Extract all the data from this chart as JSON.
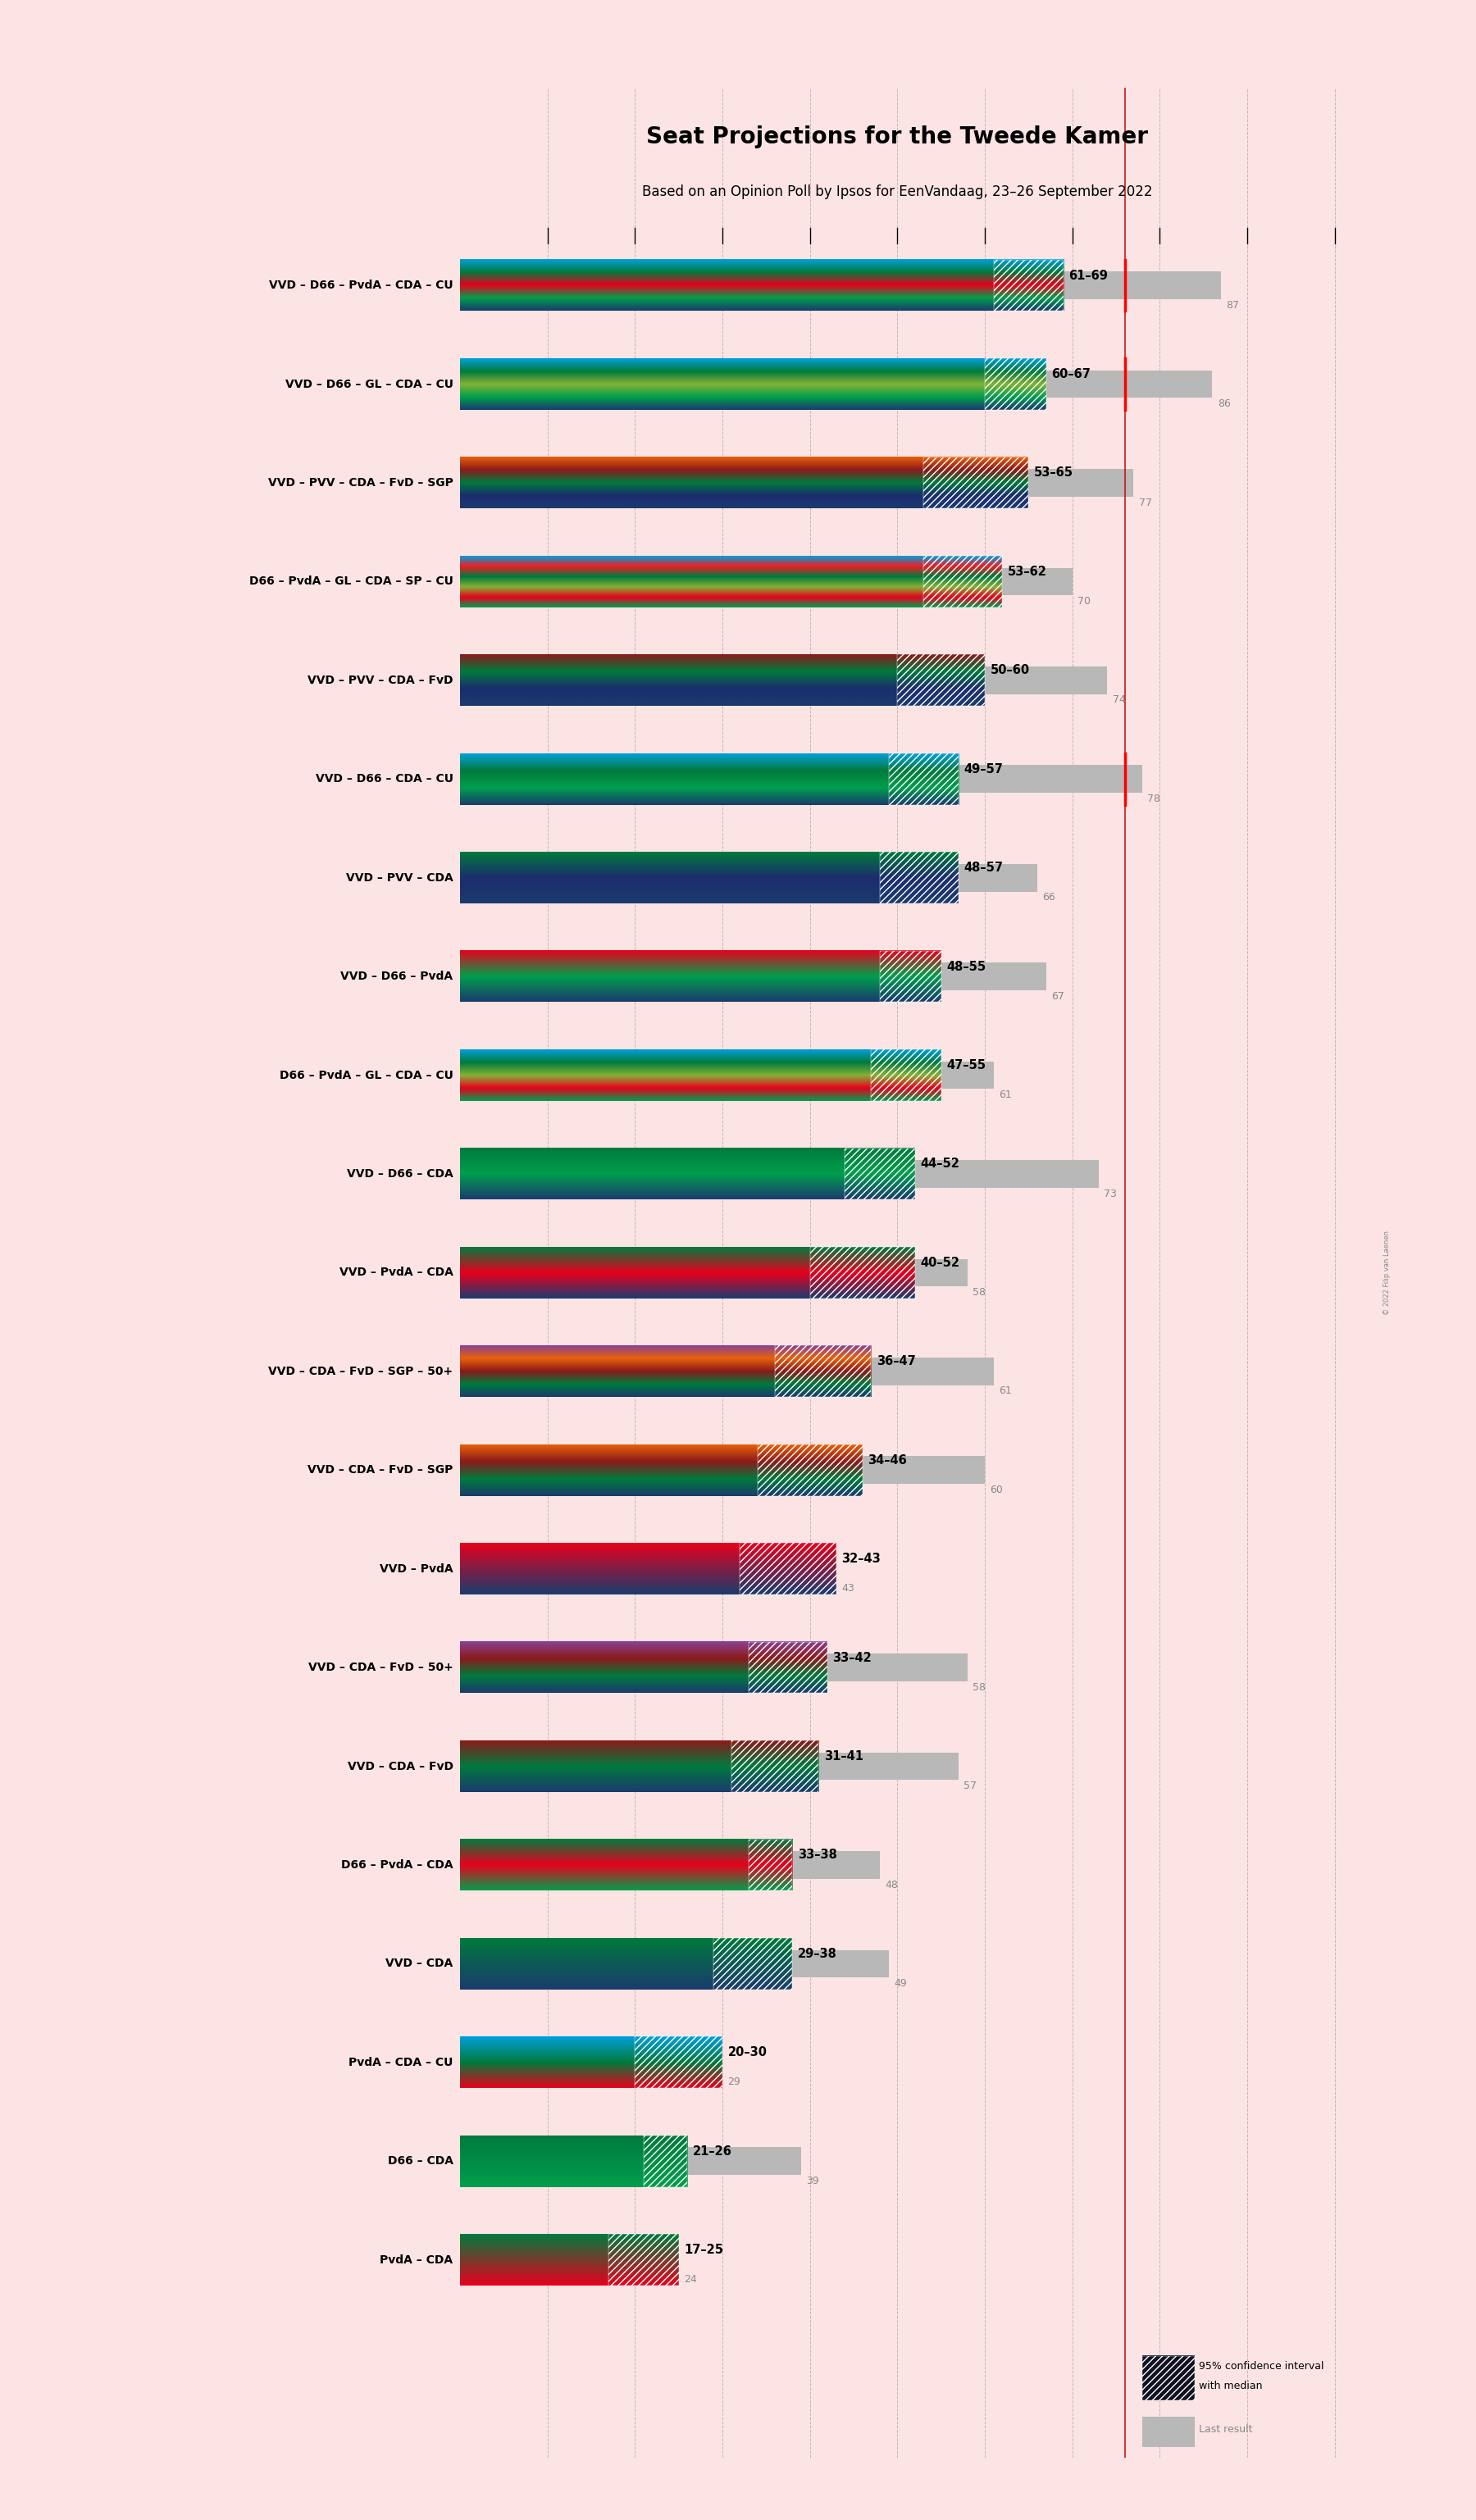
{
  "title": "Seat Projections for the Tweede Kamer",
  "subtitle": "Based on an Opinion Poll by Ipsos for EenVandaag, 23–26 September 2022",
  "background_color": "#fce4e4",
  "bar_bg_color": "#c0c0c0",
  "coalitions": [
    {
      "name": "VVD – D66 – PvdA – CDA – CU",
      "low": 61,
      "high": 69,
      "last": 87,
      "parties": [
        "VVD",
        "D66",
        "PvdA",
        "CDA",
        "CU"
      ],
      "majority_marker": true
    },
    {
      "name": "VVD – D66 – GL – CDA – CU",
      "low": 60,
      "high": 67,
      "last": 86,
      "parties": [
        "VVD",
        "D66",
        "GL",
        "CDA",
        "CU"
      ],
      "majority_marker": true
    },
    {
      "name": "VVD – PVV – CDA – FvD – SGP",
      "low": 53,
      "high": 65,
      "last": 77,
      "parties": [
        "VVD",
        "PVV",
        "CDA",
        "FvD",
        "SGP"
      ],
      "majority_marker": false
    },
    {
      "name": "D66 – PvdA – GL – CDA – SP – CU",
      "low": 53,
      "high": 62,
      "last": 70,
      "parties": [
        "D66",
        "PvdA",
        "GL",
        "CDA",
        "SP",
        "CU"
      ],
      "majority_marker": false
    },
    {
      "name": "VVD – PVV – CDA – FvD",
      "low": 50,
      "high": 60,
      "last": 74,
      "parties": [
        "VVD",
        "PVV",
        "CDA",
        "FvD"
      ],
      "majority_marker": false
    },
    {
      "name": "VVD – D66 – CDA – CU",
      "low": 49,
      "high": 57,
      "last": 78,
      "parties": [
        "VVD",
        "D66",
        "CDA",
        "CU"
      ],
      "majority_marker": true
    },
    {
      "name": "VVD – PVV – CDA",
      "low": 48,
      "high": 57,
      "last": 66,
      "parties": [
        "VVD",
        "PVV",
        "CDA"
      ],
      "majority_marker": false
    },
    {
      "name": "VVD – D66 – PvdA",
      "low": 48,
      "high": 55,
      "last": 67,
      "parties": [
        "VVD",
        "D66",
        "PvdA"
      ],
      "majority_marker": false
    },
    {
      "name": "D66 – PvdA – GL – CDA – CU",
      "low": 47,
      "high": 55,
      "last": 61,
      "parties": [
        "D66",
        "PvdA",
        "GL",
        "CDA",
        "CU"
      ],
      "majority_marker": false
    },
    {
      "name": "VVD – D66 – CDA",
      "low": 44,
      "high": 52,
      "last": 73,
      "parties": [
        "VVD",
        "D66",
        "CDA"
      ],
      "majority_marker": false
    },
    {
      "name": "VVD – PvdA – CDA",
      "low": 40,
      "high": 52,
      "last": 58,
      "parties": [
        "VVD",
        "PvdA",
        "CDA"
      ],
      "majority_marker": false
    },
    {
      "name": "VVD – CDA – FvD – SGP – 50+",
      "low": 36,
      "high": 47,
      "last": 61,
      "parties": [
        "VVD",
        "CDA",
        "FvD",
        "SGP",
        "50+"
      ],
      "majority_marker": false
    },
    {
      "name": "VVD – CDA – FvD – SGP",
      "low": 34,
      "high": 46,
      "last": 60,
      "parties": [
        "VVD",
        "CDA",
        "FvD",
        "SGP"
      ],
      "majority_marker": false
    },
    {
      "name": "VVD – PvdA",
      "low": 32,
      "high": 43,
      "last": 43,
      "parties": [
        "VVD",
        "PvdA"
      ],
      "majority_marker": false
    },
    {
      "name": "VVD – CDA – FvD – 50+",
      "low": 33,
      "high": 42,
      "last": 58,
      "parties": [
        "VVD",
        "CDA",
        "FvD",
        "50+"
      ],
      "majority_marker": false
    },
    {
      "name": "VVD – CDA – FvD",
      "low": 31,
      "high": 41,
      "last": 57,
      "parties": [
        "VVD",
        "CDA",
        "FvD"
      ],
      "majority_marker": false
    },
    {
      "name": "D66 – PvdA – CDA",
      "low": 33,
      "high": 38,
      "last": 48,
      "parties": [
        "D66",
        "PvdA",
        "CDA"
      ],
      "majority_marker": false
    },
    {
      "name": "VVD – CDA",
      "low": 29,
      "high": 38,
      "last": 49,
      "parties": [
        "VVD",
        "CDA"
      ],
      "majority_marker": false
    },
    {
      "name": "PvdA – CDA – CU",
      "low": 20,
      "high": 30,
      "last": 29,
      "parties": [
        "PvdA",
        "CDA",
        "CU"
      ],
      "majority_marker": false
    },
    {
      "name": "D66 – CDA",
      "low": 21,
      "high": 26,
      "last": 39,
      "parties": [
        "D66",
        "CDA"
      ],
      "majority_marker": false
    },
    {
      "name": "PvdA – CDA",
      "low": 17,
      "high": 25,
      "last": 24,
      "parties": [
        "PvdA",
        "CDA"
      ],
      "majority_marker": false
    }
  ],
  "party_colors": {
    "VVD": "#1a3b6e",
    "D66": "#009f4d",
    "PvdA": "#e8001c",
    "CDA": "#007a3d",
    "CU": "#00a0dc",
    "GL": "#84b135",
    "PVV": "#1c2d6e",
    "FvD": "#8b1a1a",
    "SGP": "#e8600a",
    "SP": "#ee1c23",
    "50+": "#8c4194"
  },
  "majority_line": 76,
  "grid_ticks": [
    10,
    20,
    30,
    40,
    50,
    60,
    70,
    80,
    90,
    100
  ],
  "x_max": 100
}
